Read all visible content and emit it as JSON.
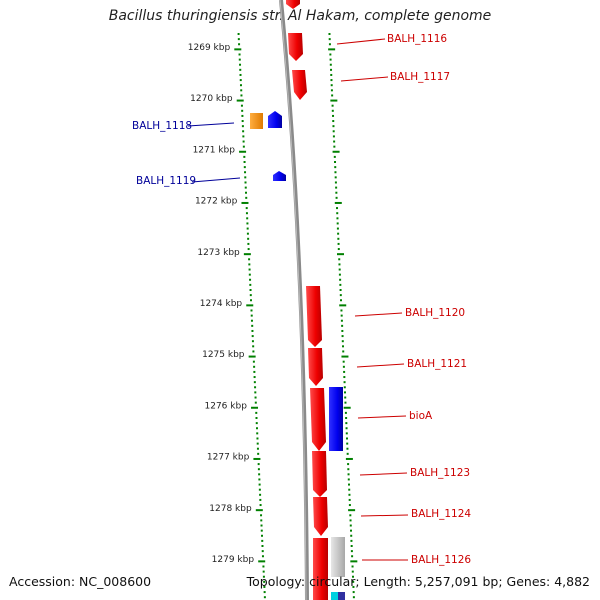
{
  "title": "Bacillus thuringiensis str. Al Hakam, complete genome",
  "accession": "Accession: NC_008600",
  "topology": "Topology: circular; Length: 5,257,091 bp; Genes: 4,882",
  "ruler": [
    {
      "label": "1269 kbp",
      "kbp": 1269
    },
    {
      "label": "1270 kbp",
      "kbp": 1270
    },
    {
      "label": "1271 kbp",
      "kbp": 1271
    },
    {
      "label": "1272 kbp",
      "kbp": 1272
    },
    {
      "label": "1273 kbp",
      "kbp": 1273
    },
    {
      "label": "1274 kbp",
      "kbp": 1274
    },
    {
      "label": "1275 kbp",
      "kbp": 1275
    },
    {
      "label": "1276 kbp",
      "kbp": 1276
    },
    {
      "label": "1277 kbp",
      "kbp": 1277
    },
    {
      "label": "1278 kbp",
      "kbp": 1278
    },
    {
      "label": "1279 kbp",
      "kbp": 1279
    }
  ],
  "genes": [
    {
      "label": "BALH_1116",
      "color": "#cc0000",
      "strand": "forward"
    },
    {
      "label": "BALH_1117",
      "color": "#cc0000",
      "strand": "forward"
    },
    {
      "label": "BALH_1118",
      "color": "#000099",
      "strand": "reverse"
    },
    {
      "label": "BALH_1119",
      "color": "#000099",
      "strand": "reverse"
    },
    {
      "label": "BALH_1120",
      "color": "#cc0000",
      "strand": "forward"
    },
    {
      "label": "BALH_1121",
      "color": "#cc0000",
      "strand": "forward"
    },
    {
      "label": "bioA",
      "color": "#cc0000",
      "strand": "forward"
    },
    {
      "label": "BALH_1123",
      "color": "#cc0000",
      "strand": "forward"
    },
    {
      "label": "BALH_1124",
      "color": "#cc0000",
      "strand": "forward"
    },
    {
      "label": "BALH_1126",
      "color": "#cc0000",
      "strand": "forward"
    }
  ],
  "colors": {
    "forward_cds": "#ff0000",
    "reverse_cds": "#0000ff",
    "other_feature": "#ff8c00",
    "backbone": "#808080",
    "ticks": "#008000"
  }
}
